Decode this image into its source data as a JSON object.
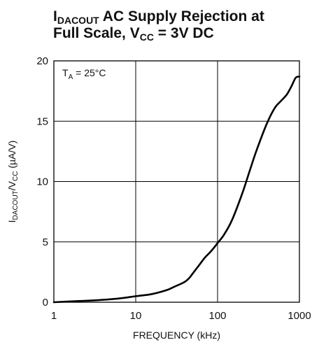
{
  "chart_data": {
    "type": "line",
    "title": {
      "line1_main": "I",
      "line1_sub": "DACOUT",
      "line1_rest": " AC Supply Rejection at",
      "line2_main": "Full Scale, V",
      "line2_sub": "CC",
      "line2_rest": " = 3V DC"
    },
    "ylabel": {
      "main1": "I",
      "sub1": "DACOUT",
      "main2": "/V",
      "sub2": "CC",
      "rest": " (µA/V)"
    },
    "xlabel": "FREQUENCY (kHz)",
    "annotation": {
      "main": "T",
      "sub": "A",
      "rest": " = 25°C"
    },
    "x_scale": "log",
    "xlim": [
      1,
      1000
    ],
    "ylim": [
      0,
      20
    ],
    "x_ticks": [
      1,
      10,
      100,
      1000
    ],
    "x_tick_labels": [
      "1",
      "10",
      "100",
      "1000"
    ],
    "y_ticks": [
      0,
      5,
      10,
      15,
      20
    ],
    "y_tick_labels": [
      "0",
      "5",
      "10",
      "15",
      "20"
    ],
    "grid": true,
    "line_color": "#000000",
    "series": [
      {
        "x": [
          1,
          2,
          3,
          5,
          7,
          10,
          15,
          20,
          25,
          30,
          35,
          40,
          45,
          50,
          60,
          70,
          80,
          90,
          100,
          120,
          150,
          200,
          250,
          300,
          400,
          500,
          600,
          700,
          800,
          900,
          1000
        ],
        "y": [
          0,
          0.1,
          0.15,
          0.25,
          0.35,
          0.5,
          0.65,
          0.85,
          1.05,
          1.3,
          1.5,
          1.7,
          2.0,
          2.4,
          3.1,
          3.7,
          4.1,
          4.5,
          4.9,
          5.6,
          6.8,
          9.0,
          11.0,
          12.6,
          14.8,
          16.1,
          16.7,
          17.2,
          17.9,
          18.6,
          18.7
        ]
      }
    ]
  }
}
